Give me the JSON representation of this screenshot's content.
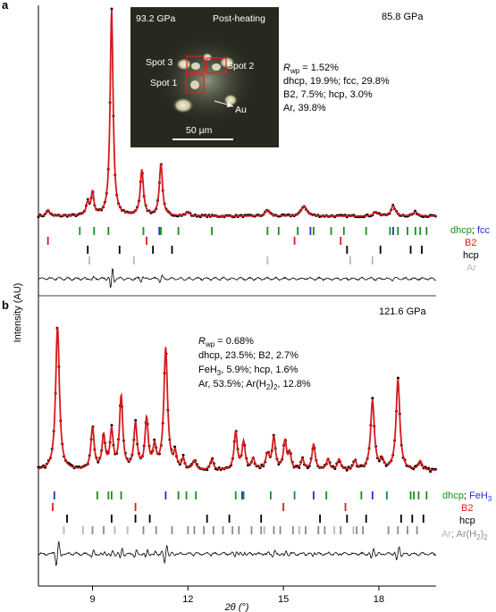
{
  "colors": {
    "fit": "#d7191c",
    "obs": "#000000",
    "dhcp": "#1a8f1a",
    "fcc": "#1c2fd6",
    "b2": "#e01b1b",
    "hcp": "#000000",
    "ar": "#b8b8b8",
    "arh2": "#8a8a8a",
    "inset_bg": "#27291f",
    "box": "#e02020"
  },
  "axis": {
    "ylabel": "Intensity (AU)",
    "xlabel": "2θ (°)",
    "xlim": [
      7.3,
      19.8
    ],
    "xticks": [
      9,
      12,
      15,
      18
    ],
    "xtick_labels": [
      "9",
      "12",
      "15",
      "18"
    ]
  },
  "panel_a": {
    "letter": "a",
    "pressure": "85.8 GPa",
    "stats": [
      "R_wp = 1.52%",
      "dhcp, 19.9%; fcc, 29.8%",
      "B2, 7.5%; hcp, 3.0%",
      "Ar, 39.8%"
    ],
    "rwp_prefix": "R",
    "rwp_sub": "wp",
    "rwp_value": " = 1.52%",
    "line2": "dhcp, 19.9%; fcc, 29.8%",
    "line3": "B2, 7.5%; hcp, 3.0%",
    "line4": "Ar, 39.8%",
    "legend": {
      "dhcp": "dhcp",
      "sep": "; ",
      "fcc": "fcc",
      "b2": "B2",
      "hcp": "hcp",
      "ar": "Ar"
    },
    "inset": {
      "pressure": "93.2 GPa",
      "condition": "Post-heating",
      "spot1": "Spot 1",
      "spot2": "Spot 2",
      "spot3": "Spot 3",
      "au": "Au",
      "scale": "50 µm"
    }
  },
  "panel_b": {
    "letter": "b",
    "pressure": "121.6 GPa",
    "rwp_prefix": "R",
    "rwp_sub": "wp",
    "rwp_value": " = 0.68%",
    "line2": "dhcp, 23.5%; B2, 2.7%",
    "line3_a": "FeH",
    "line3_sub": "3",
    "line3_b": ", 5.9%; hcp, 1.6%",
    "line4_a": "Ar, 53.5%; Ar(H",
    "line4_sub": "2",
    "line4_b": ")",
    "line4_sub2": "2",
    "line4_c": ", 12.8%",
    "legend": {
      "dhcp": "dhcp",
      "sep": "; ",
      "feh3": "FeH",
      "feh3_sub": "3",
      "b2": "B2",
      "hcp": "hcp",
      "ar": "Ar",
      "sep2": "; ",
      "arh2": "Ar(H",
      "arh2_sub": "2",
      "arh2_close": ")",
      "arh2_sub2": "2"
    }
  },
  "chart_data": [
    {
      "type": "line",
      "panel": "a",
      "pressure": "85.8 GPa",
      "xlim": [
        7.3,
        19.8
      ],
      "peaks": [
        {
          "x": 7.6,
          "h": 0.03,
          "w": 0.05
        },
        {
          "x": 8.85,
          "h": 0.06,
          "w": 0.06
        },
        {
          "x": 9.0,
          "h": 0.11,
          "w": 0.05
        },
        {
          "x": 9.6,
          "h": 1.0,
          "w": 0.055
        },
        {
          "x": 10.55,
          "h": 0.22,
          "w": 0.06
        },
        {
          "x": 11.15,
          "h": 0.25,
          "w": 0.06
        },
        {
          "x": 12.0,
          "h": 0.02,
          "w": 0.06
        },
        {
          "x": 14.5,
          "h": 0.03,
          "w": 0.08
        },
        {
          "x": 15.65,
          "h": 0.05,
          "w": 0.1
        },
        {
          "x": 17.9,
          "h": 0.02,
          "w": 0.08
        },
        {
          "x": 18.45,
          "h": 0.05,
          "w": 0.08
        },
        {
          "x": 19.15,
          "h": 0.02,
          "w": 0.08
        }
      ],
      "ticks": {
        "dhcp": [
          8.6,
          9.05,
          9.5,
          10.6,
          11.15,
          11.7,
          12.75,
          14.5,
          14.85,
          15.45,
          15.95,
          16.5,
          16.9,
          17.6,
          18.35,
          18.6,
          18.9,
          19.15,
          19.3,
          19.5
        ],
        "fcc": [
          11.1,
          15.85,
          18.45
        ],
        "b2": [
          7.6,
          10.7,
          15.35,
          16.8
        ],
        "hcp": [
          8.85,
          9.85,
          10.9,
          11.5,
          17.0,
          18.05,
          19.0,
          19.35
        ],
        "ar": [
          8.9,
          10.3,
          14.5,
          17.1,
          17.8
        ]
      }
    },
    {
      "type": "line",
      "panel": "b",
      "pressure": "121.6 GPa",
      "xlim": [
        7.3,
        19.8
      ],
      "peaks": [
        {
          "x": 7.9,
          "h": 0.95,
          "w": 0.07
        },
        {
          "x": 9.0,
          "h": 0.28,
          "w": 0.06
        },
        {
          "x": 9.35,
          "h": 0.22,
          "w": 0.06
        },
        {
          "x": 9.6,
          "h": 0.25,
          "w": 0.06
        },
        {
          "x": 9.9,
          "h": 0.48,
          "w": 0.06
        },
        {
          "x": 10.35,
          "h": 0.3,
          "w": 0.06
        },
        {
          "x": 10.7,
          "h": 0.33,
          "w": 0.06
        },
        {
          "x": 10.95,
          "h": 0.14,
          "w": 0.06
        },
        {
          "x": 11.3,
          "h": 0.8,
          "w": 0.07
        },
        {
          "x": 11.6,
          "h": 0.1,
          "w": 0.05
        },
        {
          "x": 11.85,
          "h": 0.07,
          "w": 0.05
        },
        {
          "x": 12.2,
          "h": 0.06,
          "w": 0.06
        },
        {
          "x": 12.75,
          "h": 0.07,
          "w": 0.06
        },
        {
          "x": 13.5,
          "h": 0.25,
          "w": 0.06
        },
        {
          "x": 13.75,
          "h": 0.18,
          "w": 0.06
        },
        {
          "x": 14.05,
          "h": 0.07,
          "w": 0.06
        },
        {
          "x": 14.5,
          "h": 0.1,
          "w": 0.07
        },
        {
          "x": 14.7,
          "h": 0.21,
          "w": 0.06
        },
        {
          "x": 15.05,
          "h": 0.19,
          "w": 0.06
        },
        {
          "x": 15.2,
          "h": 0.1,
          "w": 0.05
        },
        {
          "x": 15.6,
          "h": 0.07,
          "w": 0.06
        },
        {
          "x": 15.95,
          "h": 0.17,
          "w": 0.06
        },
        {
          "x": 16.4,
          "h": 0.07,
          "w": 0.06
        },
        {
          "x": 16.75,
          "h": 0.07,
          "w": 0.06
        },
        {
          "x": 17.25,
          "h": 0.06,
          "w": 0.06
        },
        {
          "x": 17.8,
          "h": 0.46,
          "w": 0.07
        },
        {
          "x": 18.1,
          "h": 0.06,
          "w": 0.06
        },
        {
          "x": 18.6,
          "h": 0.6,
          "w": 0.07
        },
        {
          "x": 19.3,
          "h": 0.06,
          "w": 0.07
        }
      ],
      "ticks": {
        "dhcp": [
          9.15,
          9.5,
          9.6,
          9.9,
          11.7,
          11.95,
          12.25,
          13.5,
          13.75,
          14.6,
          15.35,
          16.35,
          17.45,
          18.25,
          19.0,
          19.1,
          19.25,
          19.5
        ],
        "feh3": [
          7.8,
          11.3,
          13.7,
          15.95,
          17.8
        ],
        "b2": [
          7.75,
          10.35,
          15.0,
          16.95
        ],
        "hcp": [
          8.2,
          9.6,
          10.35,
          10.8,
          12.6,
          13.3,
          14.3,
          16.15,
          17.0,
          17.6,
          18.7,
          19.05,
          19.4
        ],
        "ar": [
          8.1,
          8.7,
          9.7,
          10.1,
          14.4,
          15.5,
          16.6,
          17.2
        ],
        "arh2": [
          9.0,
          9.35,
          10.6,
          11.0,
          11.5,
          12.0,
          12.2,
          12.5,
          12.8,
          13.1,
          13.4,
          13.6,
          14.0,
          14.3,
          14.7,
          14.9,
          15.3,
          15.7,
          16.1,
          16.3,
          16.8,
          17.3,
          17.5,
          18.3,
          18.6,
          18.9,
          19.2
        ]
      }
    }
  ]
}
